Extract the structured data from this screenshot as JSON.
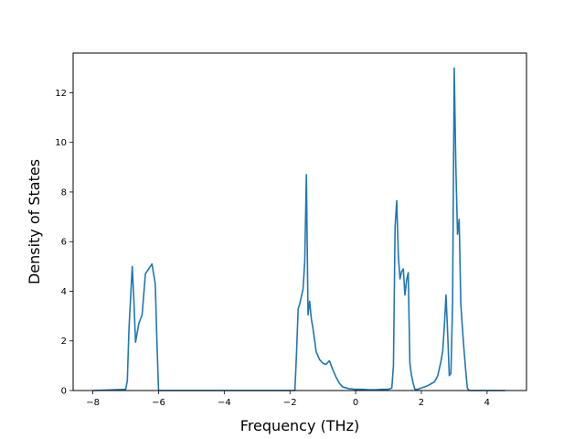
{
  "chart_data": {
    "type": "line",
    "title": "",
    "xlabel": "Frequency (THz)",
    "ylabel": "Density of States",
    "xlim": [
      -8.6,
      5.2
    ],
    "ylim": [
      0,
      13.6
    ],
    "xticks": [
      -8,
      -6,
      -4,
      -2,
      0,
      2,
      4
    ],
    "xtick_labels": [
      "−8",
      "−6",
      "−4",
      "−2",
      "0",
      "2",
      "4"
    ],
    "yticks": [
      0,
      2,
      4,
      6,
      8,
      10,
      12
    ],
    "ytick_labels": [
      "0",
      "2",
      "4",
      "6",
      "8",
      "10",
      "12"
    ],
    "grid": false,
    "legend": "none",
    "line_color": "#1f77b4",
    "series": [
      {
        "x": [
          -8.0,
          -7.0,
          -6.95,
          -6.9,
          -6.8,
          -6.75,
          -6.7,
          -6.6,
          -6.5,
          -6.4,
          -6.3,
          -6.2,
          -6.1,
          -6.05,
          -6.0,
          -5.5,
          -4.0,
          -2.0,
          -1.85,
          -1.8,
          -1.75,
          -1.7,
          -1.65,
          -1.6,
          -1.55,
          -1.5,
          -1.45,
          -1.4,
          -1.35,
          -1.3,
          -1.2,
          -1.1,
          -1.0,
          -0.9,
          -0.8,
          -0.7,
          -0.6,
          -0.5,
          -0.4,
          -0.2,
          0.0,
          0.2,
          0.4,
          0.6,
          0.8,
          1.0,
          1.1,
          1.15,
          1.2,
          1.25,
          1.3,
          1.35,
          1.4,
          1.45,
          1.5,
          1.55,
          1.6,
          1.65,
          1.7,
          1.75,
          1.8,
          1.9,
          2.0,
          2.2,
          2.4,
          2.5,
          2.6,
          2.65,
          2.7,
          2.75,
          2.8,
          2.85,
          2.9,
          2.95,
          3.0,
          3.05,
          3.1,
          3.15,
          3.2,
          3.25,
          3.3,
          3.35,
          3.4,
          3.45,
          3.5,
          3.55,
          3.6,
          4.0,
          4.55
        ],
        "y": [
          0.0,
          0.05,
          0.4,
          2.5,
          5.0,
          3.6,
          1.95,
          2.7,
          3.05,
          4.7,
          4.9,
          5.1,
          4.3,
          2.0,
          0.0,
          0.0,
          0.0,
          0.0,
          0.0,
          1.5,
          3.3,
          3.5,
          3.8,
          4.1,
          5.2,
          8.7,
          3.05,
          3.6,
          2.9,
          2.5,
          1.55,
          1.25,
          1.1,
          1.05,
          1.2,
          0.85,
          0.55,
          0.3,
          0.15,
          0.07,
          0.05,
          0.05,
          0.03,
          0.03,
          0.05,
          0.05,
          0.1,
          1.0,
          6.6,
          7.65,
          5.4,
          4.5,
          4.8,
          4.9,
          3.85,
          4.45,
          4.75,
          1.1,
          0.6,
          0.3,
          0.05,
          0.05,
          0.1,
          0.2,
          0.35,
          0.6,
          1.2,
          1.6,
          2.6,
          3.85,
          2.3,
          0.6,
          0.7,
          3.5,
          13.0,
          9.0,
          6.3,
          6.9,
          3.5,
          2.5,
          1.6,
          0.8,
          0.1,
          0.0,
          0.0,
          0.0,
          0.0,
          0.0,
          0.0
        ]
      }
    ]
  }
}
